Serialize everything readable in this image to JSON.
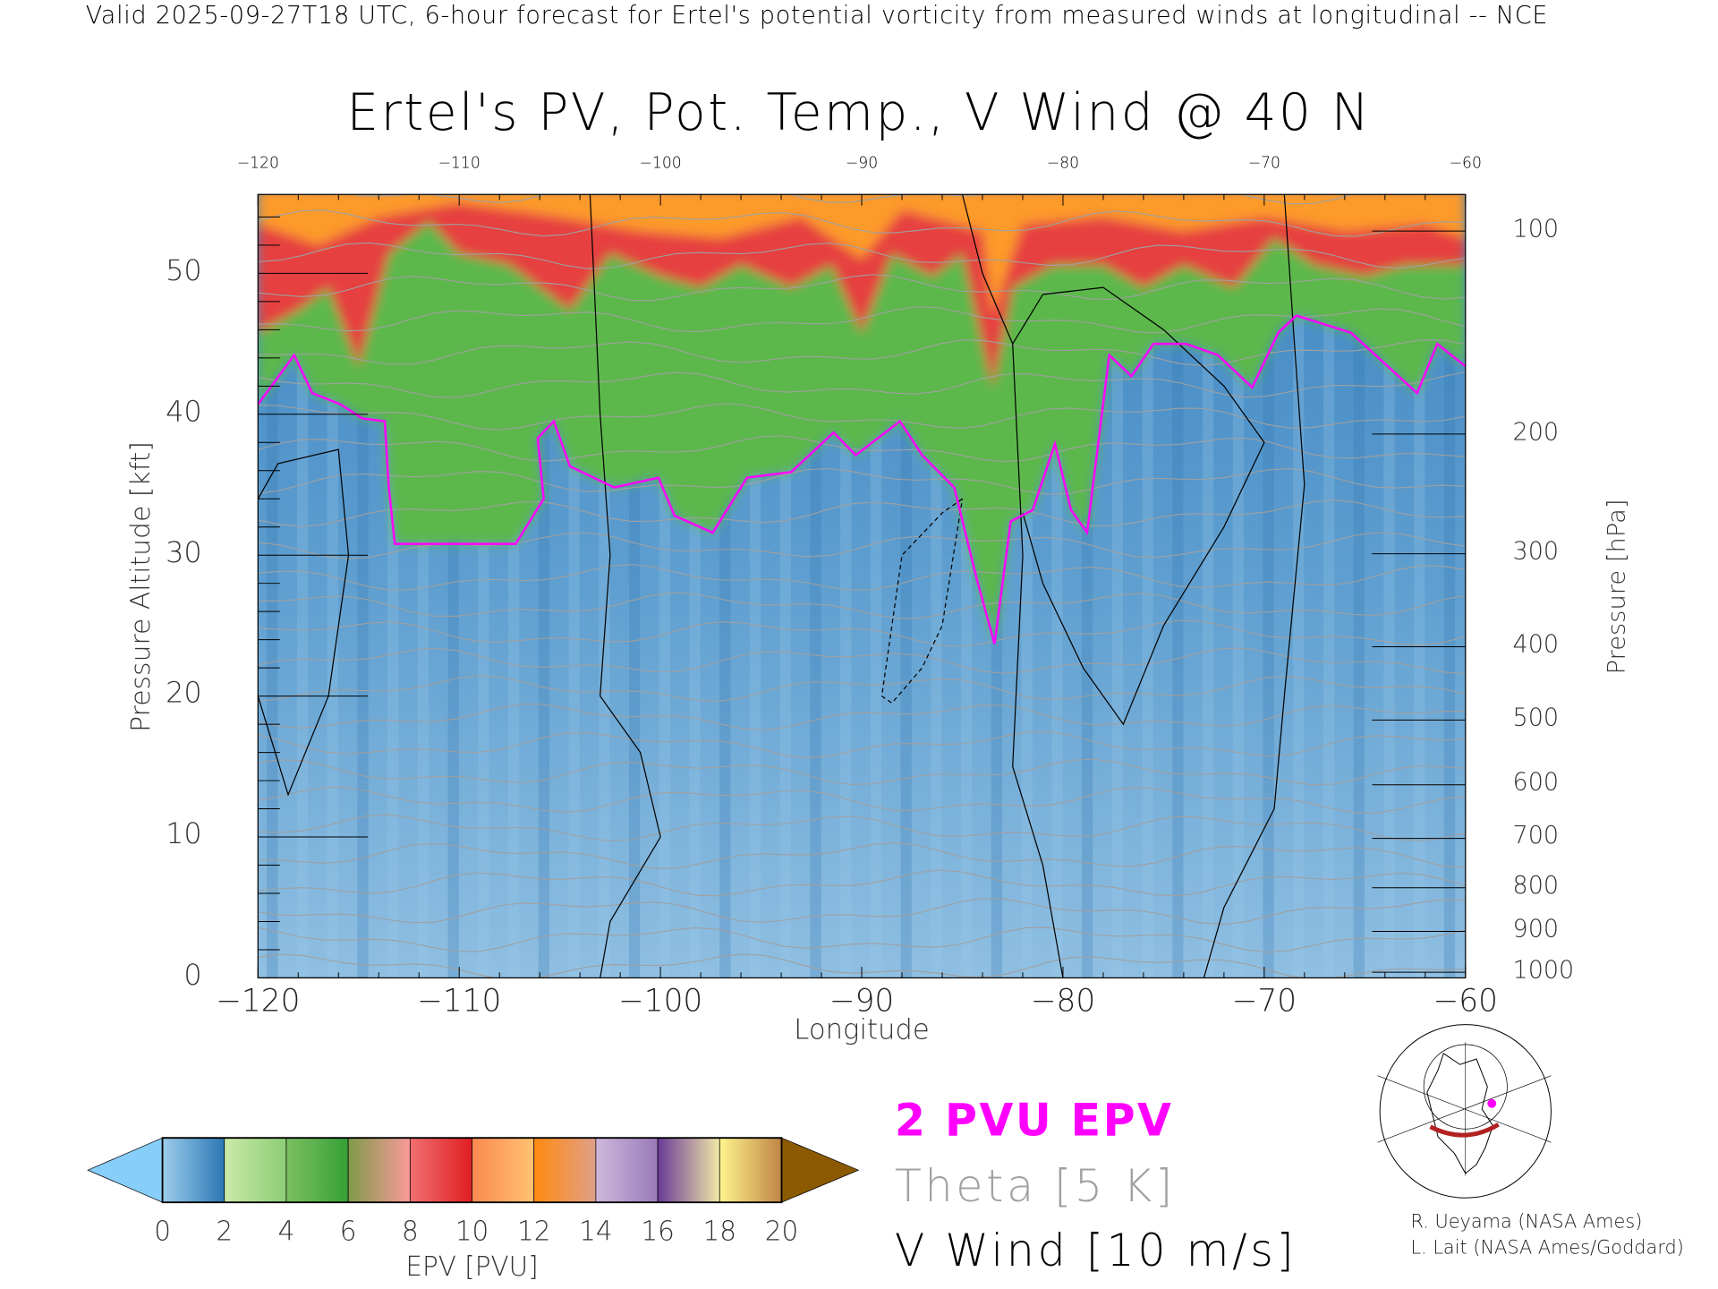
{
  "header": {
    "subtitle": "Valid 2025-09-27T18 UTC, 6-hour forecast for Ertel's potential vorticity from measured winds at longitudinal -- NCE",
    "title": "Ertel's PV, Pot. Temp., V Wind @ 40 N"
  },
  "chart_data": {
    "type": "heatmap",
    "title": "Ertel's PV, Pot. Temp., V Wind @ 40 N",
    "xlabel": "Longitude",
    "ylabel": "Pressure Altitude [kft]",
    "y2label": "Pressure [hPa]",
    "xlim": [
      -120,
      -60
    ],
    "ylim": [
      0,
      55.6
    ],
    "x_ticks": [
      "-120",
      "-110",
      "-100",
      "-90",
      "-80",
      "-70",
      "-60"
    ],
    "x_ticks_top": [
      "-120",
      "-110",
      "-100",
      "-90",
      "-80",
      "-70",
      "-60"
    ],
    "y_ticks": [
      "0",
      "10",
      "20",
      "30",
      "40",
      "50"
    ],
    "y2_ticks": [
      {
        "label": "100",
        "kft": 53.0
      },
      {
        "label": "200",
        "kft": 38.6
      },
      {
        "label": "300",
        "kft": 30.1
      },
      {
        "label": "400",
        "kft": 23.5
      },
      {
        "label": "500",
        "kft": 18.3
      },
      {
        "label": "600",
        "kft": 13.7
      },
      {
        "label": "700",
        "kft": 9.9
      },
      {
        "label": "800",
        "kft": 6.4
      },
      {
        "label": "900",
        "kft": 3.3
      },
      {
        "label": "1000",
        "kft": 0.4
      }
    ],
    "pv_2pvu_line": [
      [
        -120,
        40.7
      ],
      [
        -118.2,
        44.2
      ],
      [
        -117.3,
        41.5
      ],
      [
        -115.9,
        40.7
      ],
      [
        -114.8,
        39.7
      ],
      [
        -113.7,
        39.5
      ],
      [
        -113.5,
        34.8
      ],
      [
        -113.2,
        30.8
      ],
      [
        -111,
        30.8
      ],
      [
        -107.2,
        30.8
      ],
      [
        -105.8,
        34
      ],
      [
        -106.1,
        38.3
      ],
      [
        -105.3,
        39.5
      ],
      [
        -104.5,
        36.3
      ],
      [
        -102.3,
        34.8
      ],
      [
        -100.1,
        35.5
      ],
      [
        -99.3,
        32.8
      ],
      [
        -97.4,
        31.6
      ],
      [
        -95.7,
        35.5
      ],
      [
        -93.5,
        35.9
      ],
      [
        -91.4,
        38.7
      ],
      [
        -90.3,
        37.1
      ],
      [
        -88.1,
        39.5
      ],
      [
        -87,
        37.1
      ],
      [
        -85.4,
        34.8
      ],
      [
        -84.3,
        28.4
      ],
      [
        -83.4,
        23.7
      ],
      [
        -82.6,
        32.4
      ],
      [
        -81.5,
        33.2
      ],
      [
        -80.4,
        37.9
      ],
      [
        -79.6,
        33.2
      ],
      [
        -78.8,
        31.6
      ],
      [
        -77.7,
        44.2
      ],
      [
        -76.6,
        42.7
      ],
      [
        -75.5,
        45
      ],
      [
        -73.9,
        45
      ],
      [
        -72.3,
        44.2
      ],
      [
        -70.6,
        41.9
      ],
      [
        -69.3,
        45.8
      ],
      [
        -68.4,
        47
      ],
      [
        -65.7,
        45.8
      ],
      [
        -62.4,
        41.5
      ],
      [
        -61.4,
        45
      ],
      [
        -60,
        43.4
      ]
    ],
    "pv_8pvu_boundary": [
      [
        -120,
        45.8
      ],
      [
        -118,
        47.4
      ],
      [
        -116.5,
        49
      ],
      [
        -115,
        43.4
      ],
      [
        -113.5,
        51.4
      ],
      [
        -111.5,
        53.7
      ],
      [
        -110,
        51.4
      ],
      [
        -107.5,
        50.6
      ],
      [
        -104.5,
        47.4
      ],
      [
        -102.5,
        51.4
      ],
      [
        -100,
        49.8
      ],
      [
        -98,
        49
      ],
      [
        -96,
        50.6
      ],
      [
        -93.5,
        49
      ],
      [
        -91.5,
        50.6
      ],
      [
        -90,
        45.8
      ],
      [
        -88.5,
        51.4
      ],
      [
        -86.5,
        49.8
      ],
      [
        -85,
        51.4
      ],
      [
        -83.5,
        41.9
      ],
      [
        -82.5,
        49
      ],
      [
        -80.5,
        50.6
      ],
      [
        -78,
        50.6
      ],
      [
        -76,
        49
      ],
      [
        -74,
        50.6
      ],
      [
        -71.5,
        49
      ],
      [
        -69.5,
        52.5
      ],
      [
        -67.5,
        50.6
      ],
      [
        -65,
        49.8
      ],
      [
        -63,
        50.6
      ],
      [
        -60,
        50.6
      ]
    ],
    "pv_12pvu_boundary": [
      [
        -120,
        53.5
      ],
      [
        -117,
        52
      ],
      [
        -114,
        54
      ],
      [
        -110,
        55
      ],
      [
        -105,
        54
      ],
      [
        -101,
        53
      ],
      [
        -97,
        52.5
      ],
      [
        -93,
        54
      ],
      [
        -90,
        51
      ],
      [
        -88,
        54.5
      ],
      [
        -84,
        53
      ],
      [
        -83.5,
        47
      ],
      [
        -82,
        53.5
      ],
      [
        -78,
        54
      ],
      [
        -74,
        53
      ],
      [
        -70,
        54
      ],
      [
        -66,
        53
      ],
      [
        -62,
        53.5
      ],
      [
        -60,
        52.5
      ]
    ],
    "vwind_contours": [
      {
        "level": "0",
        "points": [
          [
            -103.5,
            55.6
          ],
          [
            -103,
            40
          ],
          [
            -102.5,
            30
          ],
          [
            -103,
            20
          ],
          [
            -101,
            16
          ],
          [
            -100,
            10
          ],
          [
            -102.5,
            4
          ],
          [
            -103,
            0
          ]
        ]
      },
      {
        "level": "0",
        "points": [
          [
            -85,
            55.6
          ],
          [
            -84,
            50
          ],
          [
            -82.5,
            45
          ],
          [
            -82,
            30
          ],
          [
            -82.5,
            15
          ],
          [
            -81,
            8
          ],
          [
            -80,
            0
          ]
        ]
      },
      {
        "level": "0",
        "points": [
          [
            -69,
            55.6
          ],
          [
            -68.5,
            45
          ],
          [
            -68,
            35
          ],
          [
            -69,
            20
          ],
          [
            -69.5,
            12
          ],
          [
            -72,
            5
          ],
          [
            -73,
            0
          ]
        ]
      },
      {
        "level": "10",
        "points": [
          [
            -82.5,
            45
          ],
          [
            -81,
            48.5
          ],
          [
            -78,
            49
          ],
          [
            -75,
            46
          ],
          [
            -72,
            42
          ],
          [
            -70,
            38
          ],
          [
            -72,
            32
          ],
          [
            -75,
            25
          ],
          [
            -77,
            18
          ],
          [
            -79,
            22
          ],
          [
            -81,
            28
          ],
          [
            -82,
            33
          ]
        ]
      },
      {
        "level": "0",
        "points": [
          [
            -120,
            34
          ],
          [
            -119,
            36.5
          ],
          [
            -116,
            37.5
          ],
          [
            -115.5,
            30
          ],
          [
            -116.5,
            20
          ],
          [
            -118.5,
            13
          ],
          [
            -120,
            20
          ]
        ]
      },
      {
        "level": "-10",
        "dashed": true,
        "points": [
          [
            -85,
            34
          ],
          [
            -86,
            33
          ],
          [
            -88,
            30
          ],
          [
            -89,
            20
          ],
          [
            -88.5,
            19.5
          ],
          [
            -87,
            22
          ],
          [
            -86,
            25
          ],
          [
            -85,
            34
          ]
        ]
      }
    ],
    "theta_interval_K": 5
  },
  "colorbar": {
    "label": "EPV [PVU]",
    "ticks": [
      "0",
      "2",
      "4",
      "6",
      "8",
      "10",
      "12",
      "14",
      "16",
      "18",
      "20"
    ],
    "segments": [
      [
        "#9dcdec",
        "#2b78b4"
      ],
      [
        "#cbe9a8",
        "#8cce76"
      ],
      [
        "#7cc062",
        "#35a035"
      ],
      [
        "#7f9a4a",
        "#fa9a9a"
      ],
      [
        "#f07070",
        "#e01e22"
      ],
      [
        "#fb8a50",
        "#ffc272"
      ],
      [
        "#ff8a10",
        "#e0a08a"
      ],
      [
        "#cdb8dc",
        "#9a7ab8"
      ],
      [
        "#6a3a98",
        "#f2e8a8"
      ],
      [
        "#fff58e",
        "#c08444"
      ]
    ],
    "under_color": "#87cefa",
    "over_color": "#8b5a00"
  },
  "legend": {
    "pv": {
      "label": "2 PVU EPV",
      "color": "#ff00ff"
    },
    "theta": {
      "label": "Theta [5 K]",
      "color": "#a0a0a0"
    },
    "wind": {
      "label": "V Wind [10 m/s]",
      "color": "#000000"
    }
  },
  "credits": [
    "R. Ueyama (NASA Ames)",
    "L. Lait (NASA Ames/Goddard)"
  ]
}
